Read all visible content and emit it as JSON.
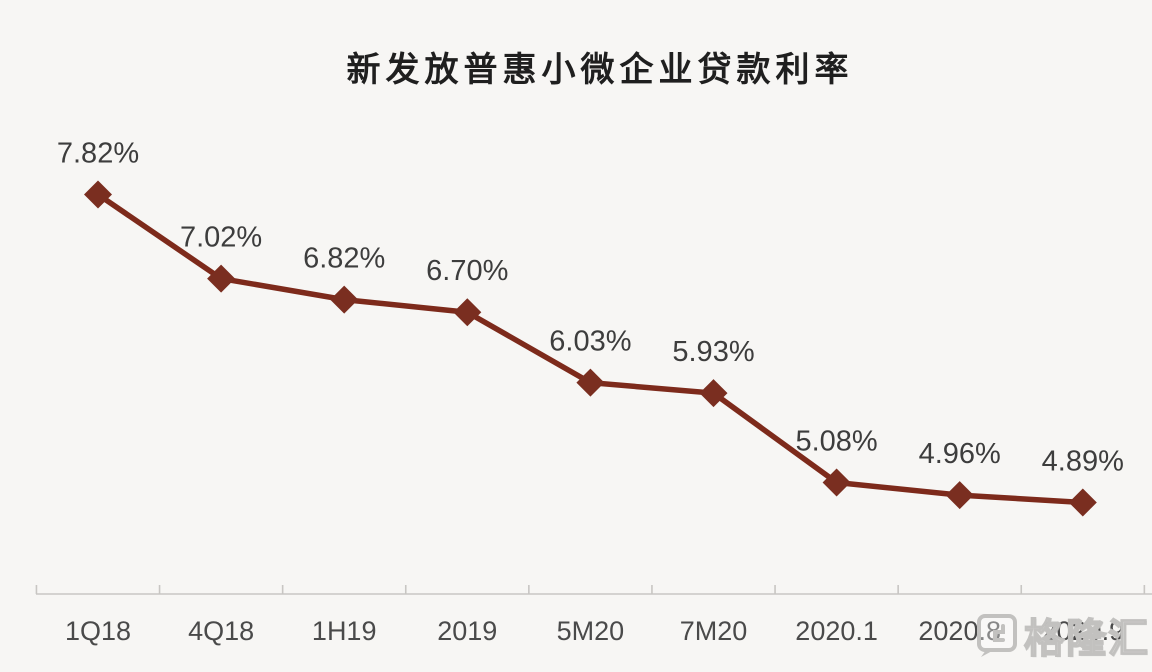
{
  "page": {
    "background": "#f7f6f4"
  },
  "chart_data": {
    "type": "line",
    "title": "新发放普惠小微企业贷款利率",
    "categories": [
      "1Q18",
      "4Q18",
      "1H19",
      "2019",
      "5M20",
      "7M20",
      "2020.1",
      "2020.8",
      "2020.9"
    ],
    "values": [
      7.82,
      7.02,
      6.82,
      6.7,
      6.03,
      5.93,
      5.08,
      4.96,
      4.89
    ],
    "data_labels": [
      "7.82%",
      "7.02%",
      "6.82%",
      "6.70%",
      "6.03%",
      "5.93%",
      "5.08%",
      "4.96%",
      "4.89%"
    ],
    "xlabel": "",
    "ylabel": "",
    "ylim": [
      4.0,
      8.0
    ],
    "grid": false,
    "legend": "none",
    "marker": "diamond",
    "colors": {
      "line": "#7d2a1b",
      "marker": "#7a2e20",
      "data_label": "#3d3d3d",
      "axis_line": "#c8c6c3",
      "tick_label": "#4a4a4a",
      "title": "#1f1f1f"
    }
  },
  "watermark": {
    "text": "格隆汇",
    "logo": "gelonghui-logo"
  }
}
